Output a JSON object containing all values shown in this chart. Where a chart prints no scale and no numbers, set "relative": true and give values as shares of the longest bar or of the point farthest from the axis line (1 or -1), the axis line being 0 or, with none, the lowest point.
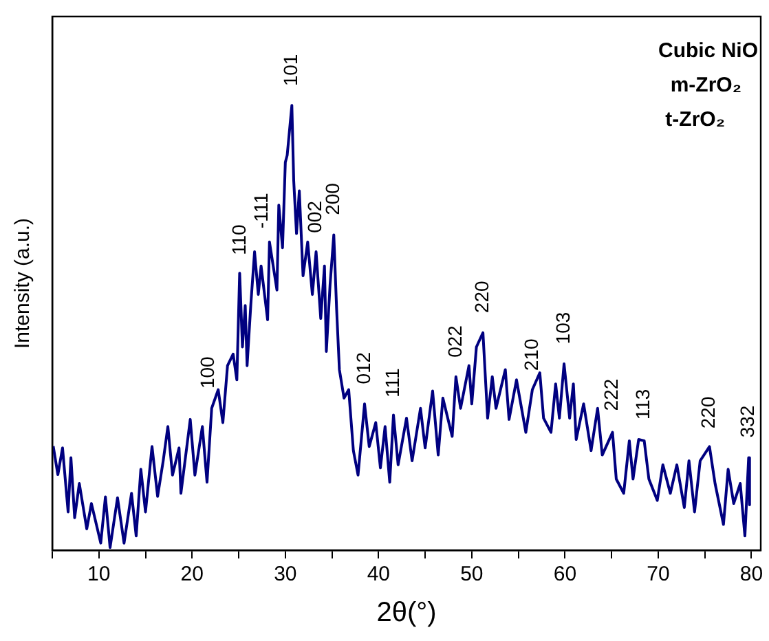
{
  "chart_data": {
    "type": "line",
    "xlabel": "2θ(°)",
    "ylabel": "Intensity (a.u.)",
    "relative": true,
    "grid": false,
    "annotations": [
      "Cubic NiO",
      "m-ZrO₂",
      "t-ZrO₂",
      {
        "text": "110",
        "x": 25.2,
        "y": 0.62
      },
      {
        "text": "200",
        "x": 35.2,
        "y": 0.71
      },
      {
        "text": "220",
        "x": 51.2,
        "y": 0.49
      },
      {
        "text": "222",
        "x": 65.1,
        "y": 0.27
      },
      {
        "text": "332",
        "x": 79.7,
        "y": 0.21
      },
      {
        "text": "-111",
        "x": 27.5,
        "y": 0.68
      },
      {
        "text": "002",
        "x": 33.3,
        "y": 0.67
      },
      {
        "text": "012",
        "x": 38.5,
        "y": 0.33
      },
      {
        "text": "022",
        "x": 48.3,
        "y": 0.39
      },
      {
        "text": "100",
        "x": 21.8,
        "y": 0.32
      },
      {
        "text": "101",
        "x": 30.7,
        "y": 1
      },
      {
        "text": "111",
        "x": 41.6,
        "y": 0.3
      },
      {
        "text": "210",
        "x": 56.5,
        "y": 0.36
      },
      {
        "text": "103",
        "x": 59.9,
        "y": 0.42
      },
      {
        "text": "113",
        "x": 68.5,
        "y": 0.25
      },
      {
        "text": "220",
        "x": 75.5,
        "y": 0.23
      }
    ],
    "marker": "none",
    "xlim": [
      5,
      81
    ],
    "xticks": [
      {
        "value": 5,
        "label": null
      },
      10,
      {
        "value": 15,
        "label": null
      },
      20,
      {
        "value": 25,
        "label": null
      },
      30,
      {
        "value": 35,
        "label": null
      },
      40,
      {
        "value": 45,
        "label": null
      },
      50,
      {
        "value": 55,
        "label": null
      },
      60,
      {
        "value": 65,
        "label": null
      },
      70,
      {
        "value": 75,
        "label": null
      },
      80
    ],
    "series": [
      {
        "color": "#000080",
        "x": [
          5.1,
          5.6,
          6.1,
          6.7,
          7.0,
          7.4,
          7.9,
          8.7,
          9.2,
          10.2,
          10.7,
          11.2,
          12.0,
          12.7,
          13.5,
          14.0,
          14.5,
          15.0,
          15.7,
          16.3,
          16.9,
          17.4,
          17.9,
          18.6,
          18.8,
          19.8,
          20.3,
          21.1,
          21.6,
          22.1,
          22.8,
          23.3,
          23.8,
          24.4,
          24.8,
          25.1,
          25.4,
          25.7,
          25.9,
          26.3,
          26.7,
          27.1,
          27.4,
          28.1,
          28.3,
          29.1,
          29.3,
          29.7,
          30.0,
          30.2,
          30.7,
          30.9,
          31.2,
          31.5,
          31.9,
          32.4,
          32.9,
          33.3,
          33.8,
          34.2,
          34.4,
          34.8,
          35.2,
          35.5,
          35.8,
          36.3,
          36.8,
          37.3,
          37.8,
          38.5,
          39.0,
          39.7,
          40.2,
          40.7,
          41.2,
          41.6,
          42.1,
          43.0,
          43.6,
          44.5,
          45.0,
          45.8,
          46.4,
          46.9,
          47.9,
          48.3,
          48.8,
          49.7,
          50.0,
          50.5,
          51.2,
          51.7,
          52.2,
          52.6,
          53.6,
          54.0,
          54.8,
          55.8,
          56.5,
          57.3,
          57.7,
          58.5,
          59.0,
          59.4,
          59.9,
          60.5,
          60.9,
          61.2,
          62.0,
          62.8,
          63.5,
          64.0,
          65.1,
          65.5,
          66.3,
          66.9,
          67.3,
          67.9,
          68.5,
          69.0,
          69.9,
          70.5,
          71.3,
          72.0,
          72.8,
          73.3,
          73.9,
          74.5,
          75.5,
          76.1,
          77.0,
          77.5,
          78.1,
          78.8,
          79.3,
          79.7,
          79.8
        ],
        "values": [
          0.234,
          0.17,
          0.23,
          0.086,
          0.208,
          0.073,
          0.15,
          0.048,
          0.105,
          0.016,
          0.12,
          0.006,
          0.118,
          0.016,
          0.128,
          0.032,
          0.182,
          0.086,
          0.233,
          0.121,
          0.201,
          0.278,
          0.169,
          0.23,
          0.128,
          0.294,
          0.169,
          0.278,
          0.153,
          0.319,
          0.361,
          0.287,
          0.415,
          0.441,
          0.383,
          0.623,
          0.457,
          0.55,
          0.415,
          0.553,
          0.671,
          0.575,
          0.639,
          0.518,
          0.693,
          0.585,
          0.776,
          0.68,
          0.872,
          0.888,
          1,
          0.831,
          0.712,
          0.808,
          0.617,
          0.693,
          0.575,
          0.671,
          0.521,
          0.639,
          0.447,
          0.597,
          0.709,
          0.543,
          0.406,
          0.342,
          0.361,
          0.224,
          0.169,
          0.329,
          0.233,
          0.287,
          0.185,
          0.278,
          0.153,
          0.304,
          0.192,
          0.297,
          0.201,
          0.319,
          0.23,
          0.358,
          0.214,
          0.342,
          0.256,
          0.39,
          0.319,
          0.415,
          0.329,
          0.457,
          0.489,
          0.297,
          0.39,
          0.319,
          0.406,
          0.294,
          0.383,
          0.265,
          0.361,
          0.399,
          0.297,
          0.265,
          0.374,
          0.297,
          0.419,
          0.297,
          0.374,
          0.249,
          0.329,
          0.224,
          0.319,
          0.214,
          0.265,
          0.16,
          0.128,
          0.246,
          0.16,
          0.249,
          0.246,
          0.16,
          0.112,
          0.192,
          0.128,
          0.192,
          0.096,
          0.201,
          0.086,
          0.201,
          0.233,
          0.15,
          0.058,
          0.182,
          0.105,
          0.15,
          0.032,
          0.208,
          0.102
        ]
      }
    ]
  }
}
